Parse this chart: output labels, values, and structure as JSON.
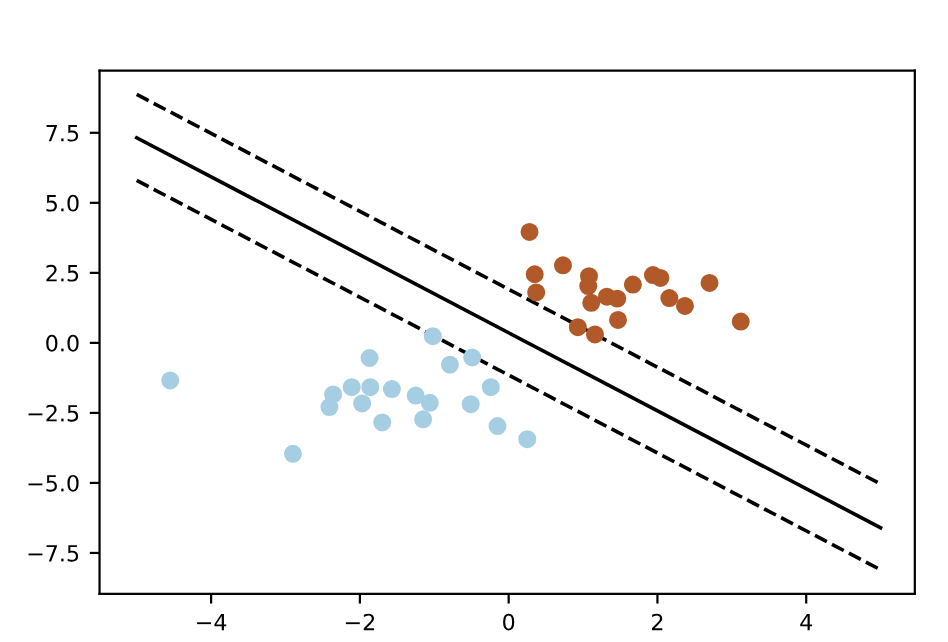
{
  "chart_data": {
    "type": "scatter",
    "xlim": [
      -5.5,
      5.46
    ],
    "ylim": [
      -8.96,
      9.72
    ],
    "xticks": [
      -4,
      -2,
      0,
      2,
      4
    ],
    "yticks": [
      -7.5,
      {
        "value": -5,
        "label": "−5.0"
      },
      -2.5,
      {
        "value": 0,
        "label": "0.0"
      },
      2.5,
      {
        "value": 5,
        "label": "5.0"
      },
      7.5
    ],
    "grid": false,
    "legend": false,
    "series": [
      {
        "marker": "circle",
        "color": "#a6cee3",
        "x": [
          -4.55,
          -2.9,
          -2.41,
          -2.36,
          -2.11,
          -1.97,
          -1.87,
          -1.86,
          -1.7,
          -1.57,
          -1.25,
          -1.15,
          -1.06,
          -1.02,
          -0.79,
          -0.51,
          -0.49,
          -0.24,
          -0.15,
          0.25
        ],
        "values": [
          -1.34,
          -3.96,
          -2.29,
          -1.84,
          -1.58,
          -2.16,
          -0.54,
          -1.58,
          -2.84,
          -1.65,
          -1.88,
          -2.73,
          -2.14,
          0.24,
          -0.78,
          -2.19,
          -0.52,
          -1.58,
          -2.97,
          -3.44
        ]
      },
      {
        "marker": "circle",
        "color": "#b15928",
        "x": [
          0.28,
          0.35,
          0.37,
          0.73,
          0.93,
          1.08,
          1.07,
          1.11,
          1.16,
          1.32,
          1.46,
          1.47,
          1.67,
          1.94,
          2.04,
          2.16,
          2.37,
          2.7,
          3.12
        ],
        "values": [
          3.96,
          2.45,
          1.8,
          2.77,
          0.56,
          2.38,
          2.03,
          1.43,
          0.3,
          1.65,
          1.58,
          0.82,
          2.08,
          2.42,
          2.32,
          1.6,
          1.32,
          2.14,
          0.76
        ]
      },
      {
        "type": "line",
        "color": "#000000",
        "line_style": "solid",
        "x": [
          -5,
          5
        ],
        "values": [
          7.32,
          -6.6
        ]
      },
      {
        "type": "line",
        "color": "#000000",
        "line_style": "dashed",
        "x": [
          -5,
          5
        ],
        "values": [
          8.87,
          -5.04
        ]
      },
      {
        "type": "line",
        "color": "#000000",
        "line_style": "dashed",
        "x": [
          -5,
          5
        ],
        "values": [
          5.8,
          -8.1
        ]
      }
    ]
  }
}
